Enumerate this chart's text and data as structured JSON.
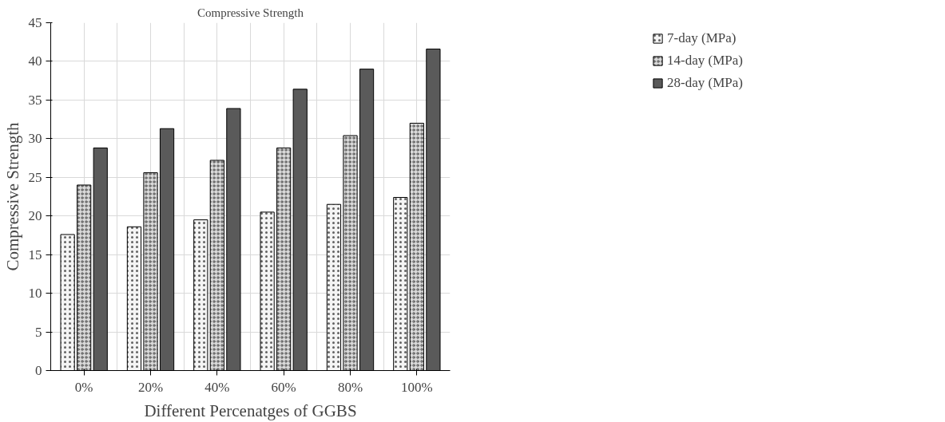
{
  "chart_data": {
    "type": "bar",
    "title": "Compressive Strength",
    "xlabel": "Different Percenatges of GGBS",
    "ylabel": "Compressive Strength",
    "categories": [
      "0%",
      "20%",
      "40%",
      "60%",
      "80%",
      "100%"
    ],
    "series": [
      {
        "name": "7-day (MPa)",
        "color": "#f4f4f4",
        "values": [
          17.6,
          18.6,
          19.5,
          20.5,
          21.5,
          22.4
        ]
      },
      {
        "name": "14-day (MPa)",
        "color": "#d8d8d8",
        "values": [
          24.0,
          25.6,
          27.2,
          28.8,
          30.4,
          32.0
        ]
      },
      {
        "name": "28-day (MPa)",
        "color": "#5a5a5a",
        "values": [
          28.8,
          31.3,
          33.9,
          36.4,
          39.0,
          41.6
        ]
      }
    ],
    "ylim": [
      0,
      45
    ],
    "yticks": [
      0,
      5,
      10,
      15,
      20,
      25,
      30,
      35,
      40,
      45
    ],
    "grid": true,
    "legend": "right"
  }
}
